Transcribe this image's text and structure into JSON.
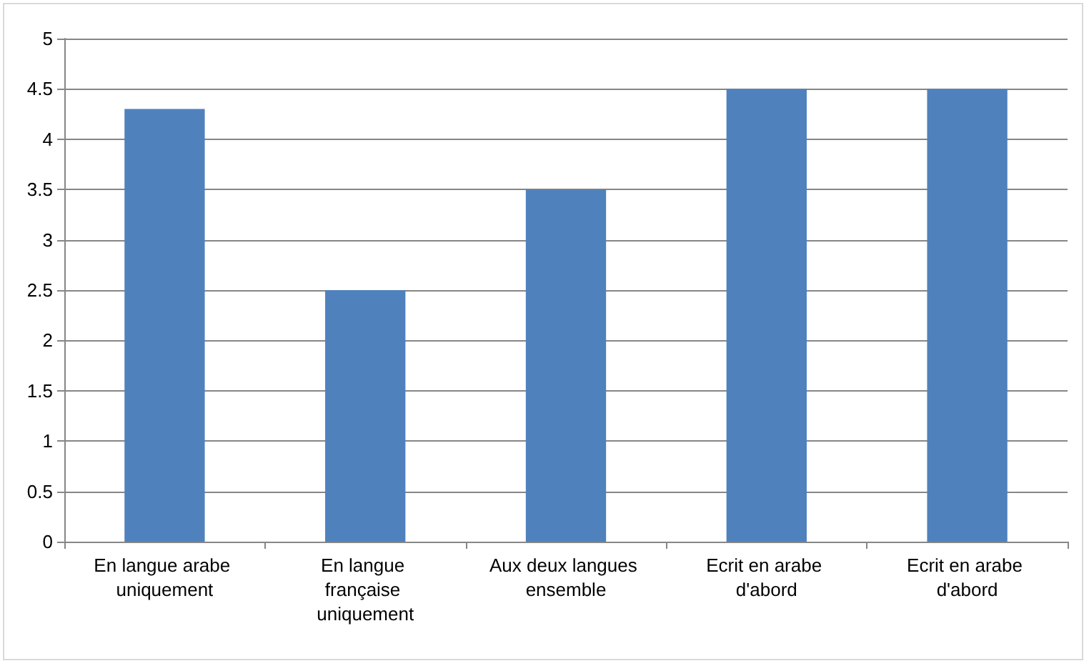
{
  "chart_data": {
    "type": "bar",
    "categories": [
      "En langue arabe uniquement",
      "En langue française uniquement",
      "Aux deux langues ensemble",
      "Ecrit en arabe d'abord",
      "Ecrit en arabe d'abord"
    ],
    "values": [
      4.3,
      2.5,
      3.5,
      4.5,
      4.5
    ],
    "color": "#4f81bd",
    "ylim": [
      0,
      5
    ],
    "yticks": [
      0,
      0.5,
      1,
      1.5,
      2,
      2.5,
      3,
      3.5,
      4,
      4.5,
      5
    ],
    "grid": "y"
  }
}
